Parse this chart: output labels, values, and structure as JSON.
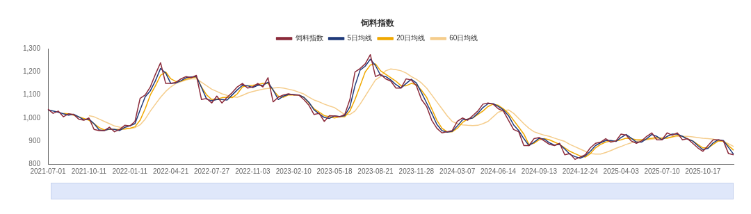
{
  "chart_data": {
    "type": "line",
    "title": "饲料指数",
    "legend": "top",
    "marker": "none",
    "line_style": "solid",
    "grid": false,
    "categories": [
      "2021-07-01",
      null,
      null,
      null,
      null,
      null,
      null,
      null,
      "2021-10-11",
      null,
      null,
      null,
      null,
      null,
      null,
      null,
      "2022-01-11",
      null,
      null,
      null,
      null,
      null,
      null,
      null,
      "2022-04-21",
      null,
      null,
      null,
      null,
      null,
      null,
      null,
      "2022-07-27",
      null,
      null,
      null,
      null,
      null,
      null,
      null,
      "2022-11-03",
      null,
      null,
      null,
      null,
      null,
      null,
      null,
      "2023-02-10",
      null,
      null,
      null,
      null,
      null,
      null,
      null,
      "2023-05-18",
      null,
      null,
      null,
      null,
      null,
      null,
      null,
      "2023-08-21",
      null,
      null,
      null,
      null,
      null,
      null,
      null,
      "2023-11-28",
      null,
      null,
      null,
      null,
      null,
      null,
      null,
      "2024-03-07",
      null,
      null,
      null,
      null,
      null,
      null,
      null,
      "2024-06-14",
      null,
      null,
      null,
      null,
      null,
      null,
      null,
      "2024-09-13",
      null,
      null,
      null,
      null,
      null,
      null,
      null,
      "2024-12-24",
      null,
      null,
      null,
      null,
      null,
      null,
      null,
      "2025-04-03",
      null,
      null,
      null,
      null,
      null,
      null,
      null,
      "2025-07-10",
      null,
      null,
      null,
      null,
      null,
      null,
      null,
      "2025-10-17",
      null,
      null,
      null,
      null,
      null,
      null
    ],
    "ylim": [
      800,
      1300
    ],
    "yticks": [
      {
        "value": 800,
        "label": "800"
      },
      {
        "value": 900,
        "label": "900"
      },
      {
        "value": 1000,
        "label": "1,000"
      },
      {
        "value": 1100,
        "label": "1,100"
      },
      {
        "value": 1200,
        "label": "1,200"
      },
      {
        "value": 1300,
        "label": "1,300"
      }
    ],
    "series": [
      {
        "name": "饲料指数",
        "color": "#8b2a3a",
        "values": [
          1038,
          1020,
          1030,
          1005,
          1018,
          1015,
          995,
          990,
          1000,
          950,
          945,
          945,
          960,
          940,
          950,
          968,
          965,
          985,
          1085,
          1100,
          1135,
          1190,
          1240,
          1150,
          1150,
          1155,
          1170,
          1180,
          1175,
          1185,
          1080,
          1085,
          1065,
          1095,
          1065,
          1090,
          1110,
          1135,
          1150,
          1130,
          1135,
          1150,
          1135,
          1175,
          1070,
          1090,
          1100,
          1105,
          1100,
          1100,
          1080,
          1055,
          1015,
          1020,
          985,
          1010,
          1008,
          1005,
          1015,
          1080,
          1200,
          1215,
          1235,
          1275,
          1180,
          1190,
          1170,
          1160,
          1130,
          1130,
          1170,
          1165,
          1140,
          1080,
          1050,
          990,
          955,
          935,
          940,
          945,
          985,
          1000,
          990,
          1010,
          1030,
          1060,
          1065,
          1060,
          1040,
          1030,
          990,
          950,
          940,
          880,
          880,
          910,
          915,
          900,
          885,
          880,
          890,
          840,
          845,
          820,
          830,
          840,
          870,
          890,
          895,
          910,
          895,
          900,
          930,
          925,
          900,
          890,
          900,
          920,
          935,
          905,
          905,
          935,
          925,
          935,
          905,
          910,
          890,
          870,
          855,
          880,
          905,
          905,
          900,
          845,
          840
        ]
      },
      {
        "name": "5日均线",
        "color": "#1f3a7a",
        "values": [
          1035,
          1030,
          1025,
          1018,
          1012,
          1016,
          1005,
          992,
          995,
          975,
          948,
          945,
          952,
          950,
          945,
          959,
          966,
          975,
          1035,
          1092,
          1118,
          1162,
          1215,
          1195,
          1150,
          1152,
          1162,
          1175,
          1178,
          1180,
          1132,
          1082,
          1075,
          1080,
          1080,
          1078,
          1100,
          1122,
          1142,
          1140,
          1132,
          1142,
          1142,
          1155,
          1122,
          1080,
          1095,
          1102,
          1102,
          1100,
          1090,
          1068,
          1035,
          1018,
          1002,
          998,
          1009,
          1006,
          1010,
          1048,
          1140,
          1208,
          1225,
          1255,
          1228,
          1185,
          1180,
          1165,
          1145,
          1130,
          1150,
          1168,
          1152,
          1110,
          1065,
          1020,
          972,
          945,
          938,
          942,
          965,
          992,
          995,
          1000,
          1020,
          1045,
          1062,
          1062,
          1050,
          1035,
          1010,
          970,
          945,
          910,
          880,
          895,
          912,
          908,
          892,
          882,
          885,
          865,
          842,
          832,
          825,
          835,
          855,
          880,
          892,
          902,
          902,
          898,
          915,
          928,
          912,
          895,
          895,
          910,
          928,
          920,
          905,
          920,
          930,
          930,
          920,
          908,
          900,
          880,
          862,
          868,
          892,
          905,
          902,
          872,
          842
        ]
      },
      {
        "name": "20日均线",
        "color": "#f0a800",
        "values": [
          null,
          null,
          null,
          1020,
          1018,
          1012,
          1005,
          998,
          990,
          975,
          958,
          948,
          950,
          950,
          950,
          952,
          955,
          962,
          990,
          1040,
          1100,
          1140,
          1185,
          1200,
          1170,
          1158,
          1160,
          1168,
          1175,
          1178,
          1135,
          1100,
          1080,
          1082,
          1088,
          1090,
          1088,
          1105,
          1135,
          1140,
          1142,
          1145,
          1150,
          1150,
          1120,
          1095,
          1090,
          1100,
          1100,
          1100,
          1090,
          1065,
          1040,
          1025,
          1010,
          1005,
          1000,
          1005,
          1005,
          1030,
          1080,
          1140,
          1200,
          1230,
          1235,
          1205,
          1190,
          1175,
          1160,
          1140,
          1140,
          1150,
          1145,
          1120,
          1090,
          1040,
          990,
          955,
          940,
          940,
          955,
          980,
          995,
          1000,
          1015,
          1030,
          1050,
          1060,
          1055,
          1040,
          1020,
          990,
          960,
          930,
          885,
          890,
          905,
          910,
          905,
          895,
          885,
          870,
          855,
          845,
          835,
          830,
          845,
          870,
          885,
          895,
          900,
          900,
          905,
          912,
          910,
          905,
          905,
          908,
          912,
          915,
          912,
          912,
          918,
          925,
          920,
          910,
          900,
          885,
          870,
          870,
          885,
          900,
          900,
          880,
          860
        ]
      },
      {
        "name": "60日均线",
        "color": "#f5cd8c",
        "values": [
          null,
          null,
          null,
          null,
          null,
          null,
          null,
          null,
          1010,
          1005,
          995,
          985,
          975,
          965,
          960,
          958,
          955,
          958,
          970,
          995,
          1030,
          1060,
          1090,
          1115,
          1135,
          1150,
          1158,
          1165,
          1170,
          1170,
          1155,
          1140,
          1125,
          1115,
          1105,
          1098,
          1092,
          1090,
          1098,
          1108,
          1115,
          1120,
          1125,
          1128,
          1130,
          1132,
          1130,
          1125,
          1120,
          1112,
          1104,
          1090,
          1078,
          1070,
          1060,
          1052,
          1045,
          1030,
          1015,
          1015,
          1030,
          1060,
          1095,
          1130,
          1165,
          1180,
          1205,
          1213,
          1210,
          1205,
          1195,
          1180,
          1168,
          1152,
          1130,
          1100,
          1070,
          1040,
          1010,
          985,
          975,
          970,
          968,
          967,
          968,
          975,
          985,
          1005,
          1025,
          1032,
          1035,
          1020,
          998,
          975,
          955,
          940,
          932,
          925,
          920,
          912,
          905,
          898,
          885,
          875,
          865,
          855,
          845,
          843,
          843,
          850,
          858,
          868,
          876,
          885,
          892,
          898,
          902,
          905,
          908,
          910,
          913,
          915,
          918,
          920,
          920,
          920,
          918,
          915,
          912,
          910,
          908,
          903,
          898,
          888,
          876
        ]
      }
    ]
  }
}
